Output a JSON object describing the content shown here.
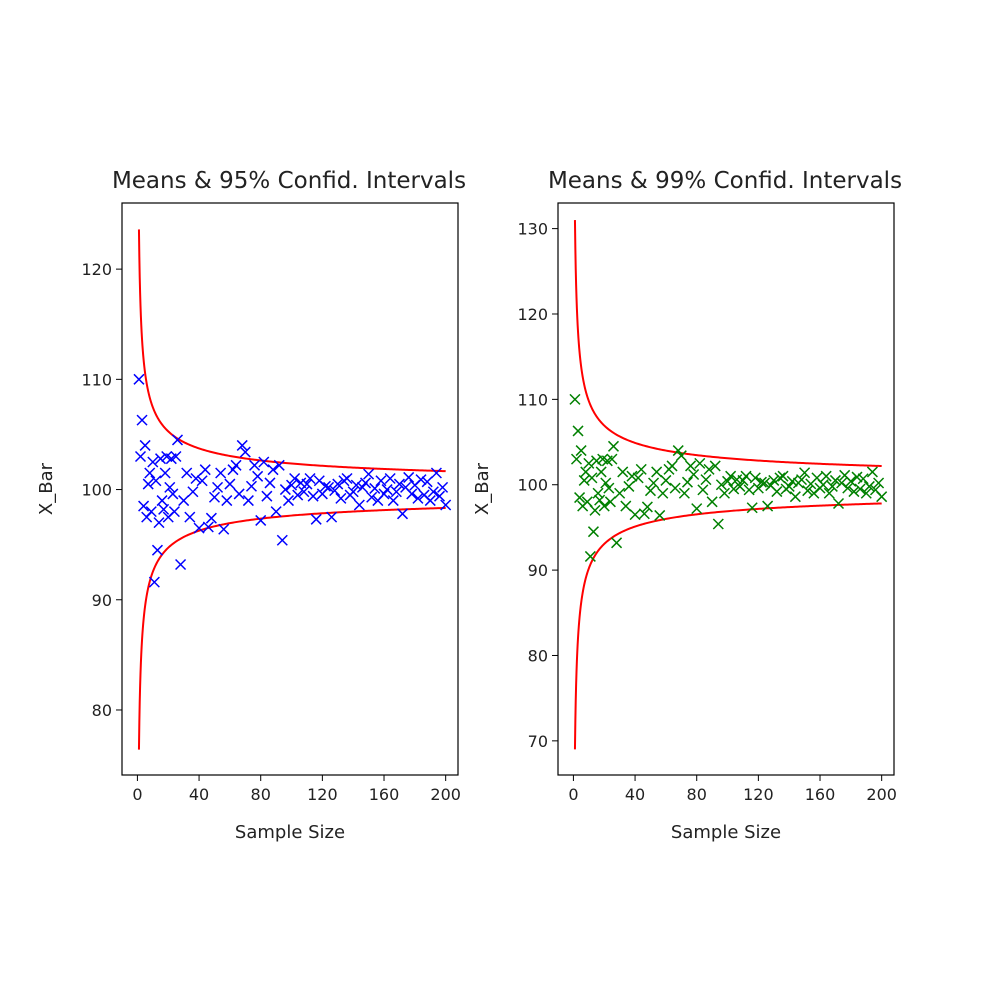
{
  "chart_data": [
    {
      "type": "scatter",
      "title": "Means & 95% Confid. Intervals",
      "xlabel": "Sample Size",
      "ylabel": "X_Bar",
      "xlim": [
        -10,
        208
      ],
      "ylim": [
        74.1,
        126.0
      ],
      "xticks": [
        0,
        40,
        80,
        120,
        160,
        200
      ],
      "yticks": [
        80,
        90,
        100,
        110,
        120
      ],
      "grid": false,
      "marker_color": "#0000ff",
      "bound_color": "#ff0000",
      "center": 100,
      "bound_coefficient": 23.6,
      "bound_x_start": 1,
      "x": [
        1,
        2,
        3,
        4,
        5,
        6,
        7,
        8,
        9,
        10,
        11,
        12,
        13,
        14,
        15,
        16,
        17,
        18,
        19,
        20,
        21,
        22,
        23,
        24,
        25,
        26,
        28,
        30,
        32,
        34,
        36,
        38,
        40,
        42,
        44,
        46,
        48,
        50,
        52,
        54,
        56,
        58,
        60,
        62,
        64,
        66,
        68,
        70,
        72,
        74,
        76,
        78,
        80,
        82,
        84,
        86,
        88,
        90,
        92,
        94,
        96,
        98,
        100,
        102,
        104,
        106,
        108,
        110,
        112,
        114,
        116,
        118,
        120,
        122,
        124,
        126,
        128,
        130,
        132,
        134,
        136,
        138,
        140,
        142,
        144,
        146,
        148,
        150,
        152,
        154,
        156,
        158,
        160,
        162,
        164,
        166,
        168,
        170,
        172,
        174,
        176,
        178,
        180,
        182,
        184,
        186,
        188,
        190,
        192,
        194,
        196,
        198,
        200
      ],
      "y": [
        110.0,
        103.0,
        106.3,
        98.5,
        104.0,
        97.5,
        100.5,
        101.5,
        98.0,
        102.5,
        91.6,
        100.8,
        94.5,
        97.0,
        102.8,
        99.0,
        98.2,
        101.5,
        103.0,
        97.5,
        100.2,
        102.8,
        99.6,
        98.0,
        103.0,
        104.5,
        93.2,
        99.0,
        101.5,
        97.5,
        99.8,
        101.0,
        96.5,
        100.8,
        101.8,
        96.6,
        97.4,
        99.3,
        100.2,
        101.5,
        96.4,
        99.0,
        100.5,
        101.8,
        102.2,
        99.6,
        104.0,
        103.4,
        99.0,
        100.3,
        102.2,
        101.2,
        97.2,
        102.5,
        99.4,
        100.6,
        101.8,
        98.0,
        102.2,
        95.4,
        100.0,
        99.0,
        100.4,
        101.0,
        99.5,
        100.6,
        99.8,
        100.5,
        101.0,
        99.4,
        97.3,
        100.8,
        99.6,
        100.3,
        100.2,
        97.5,
        99.9,
        100.5,
        99.2,
        100.8,
        101.0,
        99.5,
        99.8,
        100.4,
        98.6,
        100.2,
        100.6,
        101.4,
        99.3,
        100.1,
        99.0,
        100.8,
        99.6,
        100.0,
        101.0,
        99.0,
        99.8,
        100.5,
        97.8,
        100.2,
        101.1,
        99.6,
        100.4,
        99.2,
        100.9,
        99.5,
        100.7,
        99.0,
        99.8,
        101.5,
        99.4,
        100.2,
        98.6
      ]
    },
    {
      "type": "scatter",
      "title": "Means & 99% Confid. Intervals",
      "xlabel": "Sample Size",
      "ylabel": "X_Bar",
      "xlim": [
        -10,
        208
      ],
      "ylim": [
        66.0,
        133.0
      ],
      "xticks": [
        0,
        40,
        80,
        120,
        160,
        200
      ],
      "yticks": [
        70,
        80,
        90,
        100,
        110,
        120,
        130
      ],
      "grid": false,
      "marker_color": "#008000",
      "bound_color": "#ff0000",
      "center": 100,
      "bound_coefficient": 31.0,
      "bound_x_start": 1,
      "x": [
        1,
        2,
        3,
        4,
        5,
        6,
        7,
        8,
        9,
        10,
        11,
        12,
        13,
        14,
        15,
        16,
        17,
        18,
        19,
        20,
        21,
        22,
        23,
        24,
        25,
        26,
        28,
        30,
        32,
        34,
        36,
        38,
        40,
        42,
        44,
        46,
        48,
        50,
        52,
        54,
        56,
        58,
        60,
        62,
        64,
        66,
        68,
        70,
        72,
        74,
        76,
        78,
        80,
        82,
        84,
        86,
        88,
        90,
        92,
        94,
        96,
        98,
        100,
        102,
        104,
        106,
        108,
        110,
        112,
        114,
        116,
        118,
        120,
        122,
        124,
        126,
        128,
        130,
        132,
        134,
        136,
        138,
        140,
        142,
        144,
        146,
        148,
        150,
        152,
        154,
        156,
        158,
        160,
        162,
        164,
        166,
        168,
        170,
        172,
        174,
        176,
        178,
        180,
        182,
        184,
        186,
        188,
        190,
        192,
        194,
        196,
        198,
        200
      ],
      "y": [
        110.0,
        103.0,
        106.3,
        98.5,
        104.0,
        97.5,
        100.5,
        101.5,
        98.0,
        102.5,
        91.6,
        100.8,
        94.5,
        97.0,
        102.8,
        99.0,
        98.2,
        101.5,
        103.0,
        97.5,
        100.2,
        102.8,
        99.6,
        98.0,
        103.0,
        104.5,
        93.2,
        99.0,
        101.5,
        97.5,
        99.8,
        101.0,
        96.5,
        100.8,
        101.8,
        96.6,
        97.4,
        99.3,
        100.2,
        101.5,
        96.4,
        99.0,
        100.5,
        101.8,
        102.2,
        99.6,
        104.0,
        103.4,
        99.0,
        100.3,
        102.2,
        101.2,
        97.2,
        102.5,
        99.4,
        100.6,
        101.8,
        98.0,
        102.2,
        95.4,
        100.0,
        99.0,
        100.4,
        101.0,
        99.5,
        100.6,
        99.8,
        100.5,
        101.0,
        99.4,
        97.3,
        100.8,
        99.6,
        100.3,
        100.2,
        97.5,
        99.9,
        100.5,
        99.2,
        100.8,
        101.0,
        99.5,
        99.8,
        100.4,
        98.6,
        100.2,
        100.6,
        101.4,
        99.3,
        100.1,
        99.0,
        100.8,
        99.6,
        100.0,
        101.0,
        99.0,
        99.8,
        100.5,
        97.8,
        100.2,
        101.1,
        99.6,
        100.4,
        99.2,
        100.9,
        99.5,
        100.7,
        99.0,
        99.8,
        101.5,
        99.4,
        100.2,
        98.6
      ]
    }
  ]
}
